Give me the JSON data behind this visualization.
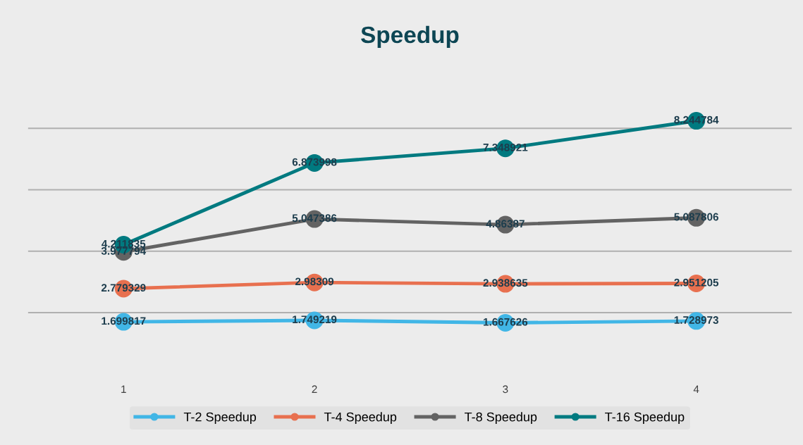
{
  "chart_data": {
    "type": "line",
    "title": "Speedup",
    "categories": [
      "1",
      "2",
      "3",
      "4"
    ],
    "series": [
      {
        "name": "T-2 Speedup",
        "color": "#41b6e6",
        "values": [
          1.699817,
          1.749219,
          1.667626,
          1.728973
        ]
      },
      {
        "name": "T-4 Speedup",
        "color": "#e8704f",
        "values": [
          2.779329,
          2.98309,
          2.938635,
          2.951205
        ]
      },
      {
        "name": "T-8 Speedup",
        "color": "#636363",
        "values": [
          3.977794,
          5.047386,
          4.86387,
          5.087806
        ]
      },
      {
        "name": "T-16 Speedup",
        "color": "#007a80",
        "values": [
          4.211835,
          6.873998,
          7.348921,
          8.244784
        ]
      }
    ],
    "tick_labels": "x",
    "grid": "y",
    "legend": "bottom",
    "marker": "circle",
    "line_style": "solid",
    "data_labels": true
  }
}
